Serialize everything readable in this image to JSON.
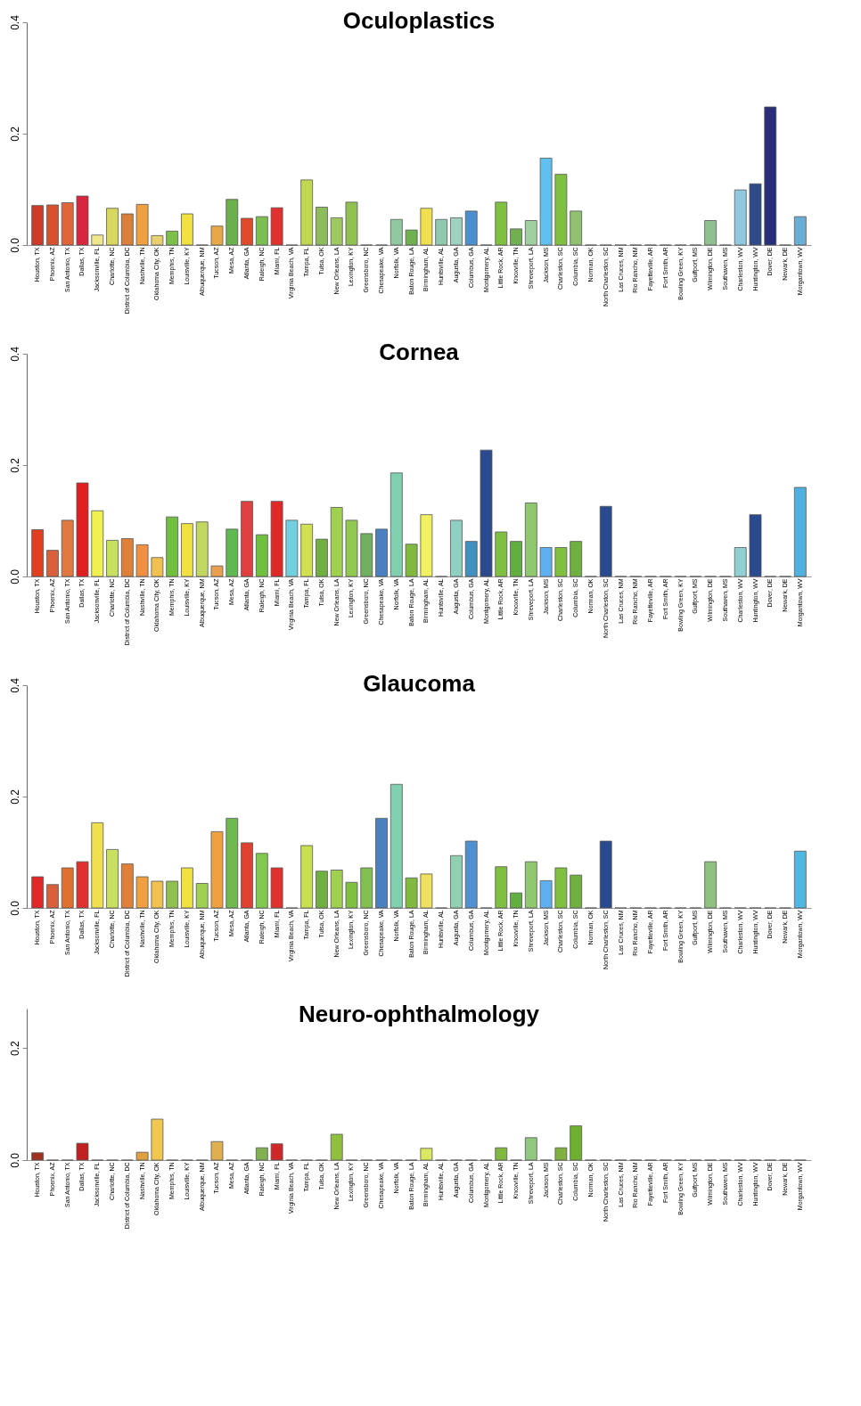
{
  "chart_data": [
    {
      "type": "bar",
      "title": "Oculoplastics",
      "grid": false,
      "ylim": [
        0,
        0.4
      ],
      "yticks": [
        {
          "value": 0,
          "label": "0.0"
        },
        {
          "value": 0.2,
          "label": "0.2"
        },
        {
          "value": 0.4,
          "label": "0.4"
        }
      ],
      "categories": [
        "Houston, TX",
        "Phoenix, AZ",
        "San Antonio, TX",
        "Dallas, TX",
        "Jacksonville, FL",
        "Charlotte, NC",
        "District of Columbia, DC",
        "Nashville, TN",
        "Oklahoma City, OK",
        "Memphis, TN",
        "Louisville, KY",
        "Albuquerque, NM",
        "Tucson, AZ",
        "Mesa, AZ",
        "Atlanta, GA",
        "Raleigh, NC",
        "Miami, FL",
        "Virginia Beach, VA",
        "Tampa, FL",
        "Tulsa, OK",
        "New Orleans, LA",
        "Lexington, KY",
        "Greensboro, NC",
        "Chesapeake, VA",
        "Norfolk, VA",
        "Baton Rouge, LA",
        "Birmingham, AL",
        "Huntsville, AL",
        "Augusta, GA",
        "Columbus, GA",
        "Montgomery, AL",
        "Little Rock, AR",
        "Knoxville, TN",
        "Shreveport, LA",
        "Jackson, MS",
        "Charleston, SC",
        "Columbia, SC",
        "Norman, OK",
        "North Charleston, SC",
        "Las Cruces, NM",
        "Rio Rancho, NM",
        "Fayetteville, AR",
        "Fort Smith, AR",
        "Bowling Green, KY",
        "Gulfport, MS",
        "Wilmington, DE",
        "Southaven, MS",
        "Charleston, WV",
        "Huntington, WV",
        "Dover, DE",
        "Newark, DE",
        "Morgantown, WV"
      ],
      "values": [
        0.071,
        0.072,
        0.076,
        0.088,
        0.018,
        0.066,
        0.056,
        0.073,
        0.017,
        0.025,
        0.056,
        0,
        0.034,
        0.082,
        0.048,
        0.051,
        0.067,
        0,
        0.117,
        0.068,
        0.049,
        0.077,
        0,
        0,
        0.046,
        0.027,
        0.066,
        0.046,
        0.049,
        0.061,
        0,
        0.077,
        0.029,
        0.044,
        0.156,
        0.127,
        0.061,
        0,
        0,
        0,
        0,
        0,
        0,
        0,
        0,
        0.044,
        0,
        0.099,
        0.11,
        0.248,
        0,
        0.051
      ],
      "colors": [
        "#cc3b2a",
        "#d9512c",
        "#e0653a",
        "#d7263d",
        "#f0e68c",
        "#d8d860",
        "#d97f3a",
        "#f0a040",
        "#e8d070",
        "#7cc04a",
        "#f0e040",
        "#555555",
        "#e8a848",
        "#6ab04c",
        "#e04a2a",
        "#7cbf50",
        "#e03030",
        "#555555",
        "#c0d850",
        "#8cbc5c",
        "#a0c860",
        "#90c050",
        "#555555",
        "#555555",
        "#90c8a0",
        "#70b050",
        "#f0e050",
        "#90c8b0",
        "#a0d0c0",
        "#4a90d0",
        "#555555",
        "#80c040",
        "#70b050",
        "#a0d0a0",
        "#60c0f0",
        "#80c040",
        "#90c070",
        "#555555",
        "#555555",
        "#555555",
        "#555555",
        "#555555",
        "#555555",
        "#555555",
        "#555555",
        "#90c090",
        "#555555",
        "#90c8e0",
        "#2e4a8a",
        "#2a2e7a",
        "#555555",
        "#6aaed6"
      ]
    },
    {
      "type": "bar",
      "title": "Cornea",
      "grid": false,
      "ylim": [
        0,
        0.4
      ],
      "yticks": [
        {
          "value": 0,
          "label": "0.0"
        },
        {
          "value": 0.2,
          "label": "0.2"
        },
        {
          "value": 0.4,
          "label": "0.4"
        }
      ],
      "categories": [
        "Houston, TX",
        "Phoenix, AZ",
        "San Antonio, TX",
        "Dallas, TX",
        "Jacksonville, FL",
        "Charlotte, NC",
        "District of Columbia, DC",
        "Nashville, TN",
        "Oklahoma City, OK",
        "Memphis, TN",
        "Louisville, KY",
        "Albuquerque, NM",
        "Tucson, AZ",
        "Mesa, AZ",
        "Atlanta, GA",
        "Raleigh, NC",
        "Miami, FL",
        "Virginia Beach, VA",
        "Tampa, FL",
        "Tulsa, OK",
        "New Orleans, LA",
        "Lexington, KY",
        "Greensboro, NC",
        "Chesapeake, VA",
        "Norfolk, VA",
        "Baton Rouge, LA",
        "Birmingham, AL",
        "Huntsville, AL",
        "Augusta, GA",
        "Columbus, GA",
        "Montgomery, AL",
        "Little Rock, AR",
        "Knoxville, TN",
        "Shreveport, LA",
        "Jackson, MS",
        "Charleston, SC",
        "Columbia, SC",
        "Norman, OK",
        "North Charleston, SC",
        "Las Cruces, NM",
        "Rio Rancho, NM",
        "Fayetteville, AR",
        "Fort Smith, AR",
        "Bowling Green, KY",
        "Gulfport, MS",
        "Wilmington, DE",
        "Southaven, MS",
        "Charleston, WV",
        "Huntington, WV",
        "Dover, DE",
        "Newark, DE",
        "Morgantown, WV"
      ],
      "values": [
        0.084,
        0.047,
        0.101,
        0.168,
        0.118,
        0.065,
        0.068,
        0.057,
        0.034,
        0.107,
        0.095,
        0.098,
        0.019,
        0.085,
        0.135,
        0.075,
        0.135,
        0.101,
        0.094,
        0.067,
        0.124,
        0.101,
        0.077,
        0.085,
        0.186,
        0.058,
        0.111,
        0,
        0.101,
        0.063,
        0.227,
        0.08,
        0.063,
        0.132,
        0.052,
        0.052,
        0.063,
        0,
        0.126,
        0,
        0,
        0,
        0,
        0,
        0,
        0,
        0,
        0.052,
        0.111,
        0,
        0,
        0.16
      ],
      "colors": [
        "#e04020",
        "#d9603a",
        "#e07840",
        "#e02020",
        "#f0f050",
        "#c8e060",
        "#e08038",
        "#f09040",
        "#f0c050",
        "#70c040",
        "#f0e040",
        "#c0d860",
        "#e8a050",
        "#60b850",
        "#e04040",
        "#70c040",
        "#e02828",
        "#70d0e0",
        "#d0e050",
        "#70b040",
        "#a0d050",
        "#90c850",
        "#70b060",
        "#4a80c0",
        "#80d0b0",
        "#80b840",
        "#f0f060",
        "#555555",
        "#90d0c0",
        "#4090c0",
        "#2a4a90",
        "#80c040",
        "#60b040",
        "#90c870",
        "#60b0f0",
        "#80c040",
        "#70b040",
        "#555555",
        "#2a4a90",
        "#555555",
        "#555555",
        "#555555",
        "#555555",
        "#555555",
        "#555555",
        "#555555",
        "#555555",
        "#90d0d0",
        "#2a4a90",
        "#555555",
        "#555555",
        "#50b0e0"
      ]
    },
    {
      "type": "bar",
      "title": "Glaucoma",
      "grid": false,
      "ylim": [
        0,
        0.4
      ],
      "yticks": [
        {
          "value": 0,
          "label": "0.0"
        },
        {
          "value": 0.2,
          "label": "0.2"
        },
        {
          "value": 0.4,
          "label": "0.4"
        }
      ],
      "categories": [
        "Houston, TX",
        "Phoenix, AZ",
        "San Antonio, TX",
        "Dallas, TX",
        "Jacksonville, FL",
        "Charlotte, NC",
        "District of Columbia, DC",
        "Nashville, TN",
        "Oklahoma City, OK",
        "Memphis, TN",
        "Louisville, KY",
        "Albuquerque, NM",
        "Tucson, AZ",
        "Mesa, AZ",
        "Atlanta, GA",
        "Raleigh, NC",
        "Miami, FL",
        "Virginia Beach, VA",
        "Tampa, FL",
        "Tulsa, OK",
        "New Orleans, LA",
        "Lexington, KY",
        "Greensboro, NC",
        "Chesapeake, VA",
        "Norfolk, VA",
        "Baton Rouge, LA",
        "Birmingham, AL",
        "Huntsville, AL",
        "Augusta, GA",
        "Columbus, GA",
        "Montgomery, AL",
        "Little Rock, AR",
        "Knoxville, TN",
        "Shreveport, LA",
        "Jackson, MS",
        "Charleston, SC",
        "Columbia, SC",
        "Norman, OK",
        "North Charleston, SC",
        "Las Cruces, NM",
        "Rio Rancho, NM",
        "Fayetteville, AR",
        "Fort Smith, AR",
        "Bowling Green, KY",
        "Gulfport, MS",
        "Wilmington, DE",
        "Southaven, MS",
        "Charleston, WV",
        "Huntington, WV",
        "Dover, DE",
        "Newark, DE",
        "Morgantown, WV"
      ],
      "values": [
        0.056,
        0.042,
        0.072,
        0.083,
        0.153,
        0.105,
        0.079,
        0.056,
        0.048,
        0.048,
        0.072,
        0.044,
        0.137,
        0.161,
        0.117,
        0.098,
        0.072,
        0,
        0.112,
        0.066,
        0.068,
        0.046,
        0.072,
        0.161,
        0.222,
        0.054,
        0.061,
        0,
        0.094,
        0.12,
        0,
        0.074,
        0.027,
        0.083,
        0.049,
        0.072,
        0.059,
        0,
        0.12,
        0,
        0,
        0,
        0,
        0,
        0,
        0.083,
        0,
        0,
        0,
        0,
        0,
        0.102
      ],
      "colors": [
        "#e02828",
        "#d9603a",
        "#e07030",
        "#e03030",
        "#f0e050",
        "#c8e060",
        "#e08038",
        "#f0a040",
        "#f0c050",
        "#90c050",
        "#f0e040",
        "#a0d050",
        "#f0a040",
        "#70b850",
        "#e04030",
        "#80c850",
        "#e03030",
        "#555555",
        "#c8e050",
        "#70b040",
        "#a0d050",
        "#80c040",
        "#80c050",
        "#4a80c0",
        "#80d0b0",
        "#80b840",
        "#f0e060",
        "#555555",
        "#90d0b0",
        "#5090d0",
        "#555555",
        "#80c040",
        "#60b040",
        "#90c870",
        "#60b0f0",
        "#80c040",
        "#70b040",
        "#555555",
        "#2a4a90",
        "#555555",
        "#555555",
        "#555555",
        "#555555",
        "#555555",
        "#555555",
        "#90c080",
        "#555555",
        "#555555",
        "#555555",
        "#555555",
        "#555555",
        "#50b8e0"
      ]
    },
    {
      "type": "bar",
      "title": "Neuro-ophthalmology",
      "grid": false,
      "ylim": [
        0,
        0.27
      ],
      "yticks": [
        {
          "value": 0,
          "label": "0.0"
        },
        {
          "value": 0.2,
          "label": "0.2"
        }
      ],
      "categories": [
        "Houston, TX",
        "Phoenix, AZ",
        "San Antonio, TX",
        "Dallas, TX",
        "Jacksonville, FL",
        "Charlotte, NC",
        "District of Columbia, DC",
        "Nashville, TN",
        "Oklahoma City, OK",
        "Memphis, TN",
        "Louisville, KY",
        "Albuquerque, NM",
        "Tucson, AZ",
        "Mesa, AZ",
        "Atlanta, GA",
        "Raleigh, NC",
        "Miami, FL",
        "Virginia Beach, VA",
        "Tampa, FL",
        "Tulsa, OK",
        "New Orleans, LA",
        "Lexington, KY",
        "Greensboro, NC",
        "Chesapeake, VA",
        "Norfolk, VA",
        "Baton Rouge, LA",
        "Birmingham, AL",
        "Huntsville, AL",
        "Augusta, GA",
        "Columbus, GA",
        "Montgomery, AL",
        "Little Rock, AR",
        "Knoxville, TN",
        "Shreveport, LA",
        "Jackson, MS",
        "Charleston, SC",
        "Columbia, SC",
        "Norman, OK",
        "North Charleston, SC",
        "Las Cruces, NM",
        "Rio Rancho, NM",
        "Fayetteville, AR",
        "Fort Smith, AR",
        "Bowling Green, KY",
        "Gulfport, MS",
        "Wilmington, DE",
        "Southaven, MS",
        "Charleston, WV",
        "Huntington, WV",
        "Dover, DE",
        "Newark, DE",
        "Morgantown, WV"
      ],
      "values": [
        0.013,
        0,
        0,
        0.03,
        0,
        0,
        0,
        0.014,
        0.073,
        0,
        0,
        0,
        0.033,
        0,
        0,
        0.022,
        0.029,
        0,
        0,
        0,
        0.046,
        0,
        0,
        0,
        0,
        0,
        0.021,
        0,
        0,
        0,
        0,
        0.022,
        0,
        0.04,
        0,
        0.022,
        0.061,
        0,
        0,
        0,
        0,
        0,
        0,
        0,
        0,
        0,
        0,
        0,
        0,
        0,
        0,
        0
      ],
      "colors": [
        "#a03020",
        "#555555",
        "#555555",
        "#c02020",
        "#555555",
        "#555555",
        "#555555",
        "#e0a040",
        "#f0c850",
        "#555555",
        "#555555",
        "#555555",
        "#e0b050",
        "#555555",
        "#555555",
        "#80b050",
        "#d02828",
        "#555555",
        "#555555",
        "#555555",
        "#90c040",
        "#555555",
        "#555555",
        "#555555",
        "#555555",
        "#555555",
        "#d8e860",
        "#555555",
        "#555555",
        "#555555",
        "#555555",
        "#80b840",
        "#555555",
        "#90c880",
        "#555555",
        "#80b040",
        "#70b030",
        "#555555",
        "#555555",
        "#555555",
        "#555555",
        "#555555",
        "#555555",
        "#555555",
        "#555555",
        "#555555",
        "#555555",
        "#555555",
        "#555555",
        "#555555",
        "#555555",
        "#555555"
      ]
    }
  ]
}
